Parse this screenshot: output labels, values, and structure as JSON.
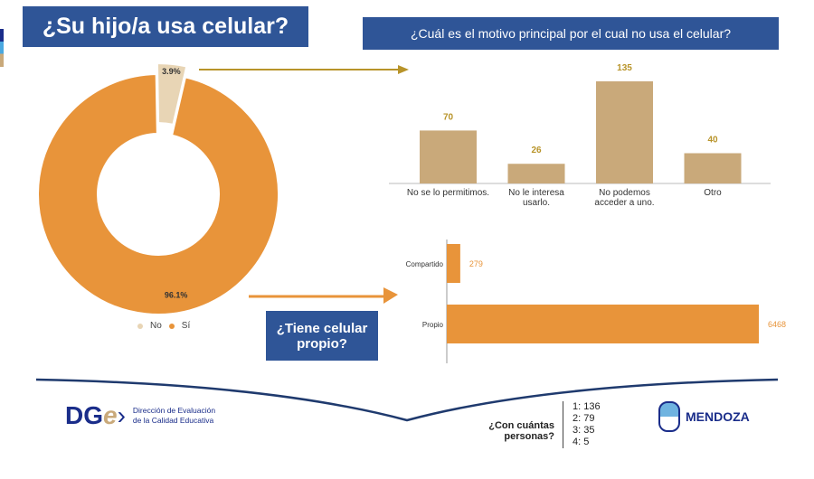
{
  "main_title": "¿Su hijo/a usa celular?",
  "bar_title": "¿Cuál es el motivo principal por el cual no usa el celular?",
  "hbar_title": "¿Tiene celular propio?",
  "colors": {
    "title_bg": "#2f5597",
    "si": "#e8943a",
    "no": "#e8d5b5",
    "bar": "#c9a97a",
    "hbar": "#e8943a",
    "value_text": "#b8942a"
  },
  "chart_data": [
    {
      "type": "pie",
      "donut": true,
      "slices": [
        {
          "label": "No",
          "value": 3.9,
          "text": "3.9%"
        },
        {
          "label": "Sí",
          "value": 96.1,
          "text": "96.1%"
        }
      ],
      "legend": [
        "No",
        "Sí"
      ],
      "legend_placement": "bottom"
    },
    {
      "type": "bar",
      "categories": [
        "No se lo permitimos.",
        "No le interesa usarlo.",
        "No podemos acceder a uno.",
        "Otro"
      ],
      "values": [
        70,
        26,
        135,
        40
      ],
      "ylim": [
        0,
        140
      ]
    },
    {
      "type": "bar",
      "orientation": "horizontal",
      "categories": [
        "Compartido",
        "Propio"
      ],
      "values": [
        279,
        6468
      ],
      "xlim": [
        0,
        6600
      ]
    }
  ],
  "people": {
    "question": "¿Con cuántas personas?",
    "items": [
      "1: 136",
      "2: 79",
      "3: 35",
      "4: 5"
    ]
  },
  "footer": {
    "dge_logo": "DGe",
    "dge_line1": "Dirección de Evaluación",
    "dge_line2": "de la Calidad Educativa",
    "mendoza": "MENDOZA"
  }
}
